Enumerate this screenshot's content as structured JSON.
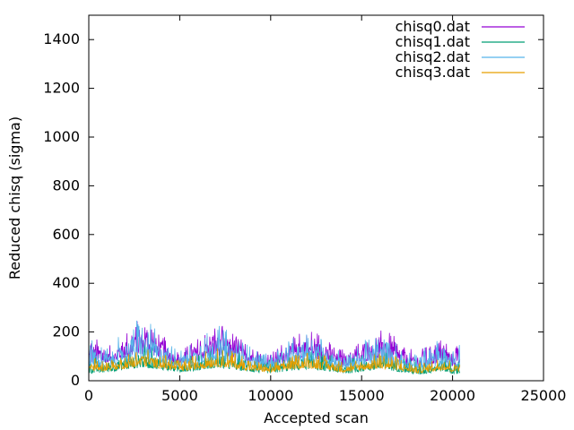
{
  "chart_data": {
    "type": "line",
    "title": "",
    "xlabel": "Accepted scan",
    "ylabel": "Reduced chisq (sigma)",
    "xlim": [
      0,
      25000
    ],
    "ylim": [
      0,
      1500
    ],
    "x_ticks": [
      0,
      5000,
      10000,
      15000,
      20000,
      25000
    ],
    "x_tick_labels": [
      "0",
      "5000",
      "10000",
      "15000",
      "20000",
      "25000"
    ],
    "y_ticks": [
      0,
      200,
      400,
      600,
      800,
      1000,
      1200,
      1400
    ],
    "y_tick_labels": [
      "0",
      "200",
      "400",
      "600",
      "800",
      "1000",
      "1200",
      "1400"
    ],
    "grid": false,
    "legend_position": "top-right",
    "series": [
      {
        "name": "chisq0.dat",
        "color": "#9400d3",
        "x": [
          0,
          500,
          1000,
          1500,
          2000,
          2500,
          3000,
          3500,
          4000,
          4500,
          5000,
          5500,
          6000,
          6500,
          7000,
          7500,
          8000,
          8500,
          9000,
          9500,
          10000,
          10500,
          11000,
          11500,
          12000,
          12500,
          13000,
          13500,
          14000,
          14500,
          15000,
          15500,
          16000,
          16500,
          17000,
          17500,
          18000,
          18500,
          19000,
          19500,
          20000,
          20400
        ],
        "upper": [
          200,
          170,
          140,
          160,
          200,
          240,
          270,
          250,
          200,
          140,
          120,
          150,
          180,
          210,
          240,
          230,
          200,
          170,
          140,
          120,
          110,
          150,
          180,
          200,
          220,
          210,
          180,
          150,
          130,
          150,
          170,
          190,
          210,
          200,
          170,
          140,
          120,
          140,
          160,
          180,
          150,
          170
        ],
        "lower": [
          70,
          70,
          75,
          80,
          95,
          105,
          110,
          105,
          95,
          80,
          70,
          75,
          85,
          95,
          105,
          100,
          95,
          85,
          75,
          70,
          65,
          70,
          80,
          90,
          95,
          90,
          80,
          70,
          60,
          65,
          75,
          85,
          90,
          85,
          75,
          65,
          55,
          60,
          70,
          80,
          60,
          70
        ]
      },
      {
        "name": "chisq1.dat",
        "color": "#009e73",
        "x": [
          0,
          500,
          1000,
          1500,
          2000,
          2500,
          3000,
          3500,
          4000,
          4500,
          5000,
          5500,
          6000,
          6500,
          7000,
          7500,
          8000,
          8500,
          9000,
          9500,
          10000,
          10500,
          11000,
          11500,
          12000,
          12500,
          13000,
          13500,
          14000,
          14500,
          15000,
          15500,
          16000,
          16500,
          17000,
          17500,
          18000,
          18500,
          19000,
          19500,
          20000,
          20400
        ],
        "upper": [
          110,
          100,
          95,
          105,
          120,
          135,
          150,
          140,
          125,
          105,
          95,
          105,
          120,
          135,
          145,
          140,
          130,
          115,
          100,
          90,
          85,
          95,
          110,
          120,
          130,
          125,
          115,
          100,
          90,
          95,
          105,
          115,
          125,
          120,
          110,
          95,
          85,
          90,
          100,
          110,
          95,
          105
        ],
        "lower": [
          30,
          30,
          35,
          40,
          45,
          50,
          55,
          50,
          45,
          40,
          35,
          38,
          42,
          48,
          52,
          50,
          45,
          40,
          35,
          32,
          30,
          35,
          40,
          45,
          48,
          45,
          40,
          35,
          28,
          32,
          38,
          42,
          45,
          42,
          38,
          32,
          25,
          28,
          35,
          40,
          25,
          30
        ]
      },
      {
        "name": "chisq2.dat",
        "color": "#56b4e9",
        "x": [
          0,
          500,
          1000,
          1500,
          2000,
          2500,
          3000,
          3500,
          4000,
          4500,
          5000,
          5500,
          6000,
          6500,
          7000,
          7500,
          8000,
          8500,
          9000,
          9500,
          10000,
          10500,
          11000,
          11500,
          12000,
          12500,
          13000,
          13500,
          14000,
          14500,
          15000,
          15500,
          16000,
          16500,
          17000,
          17500,
          18000,
          18500,
          19000,
          19500,
          20000,
          20400
        ],
        "upper": [
          180,
          160,
          140,
          170,
          210,
          260,
          250,
          230,
          190,
          150,
          130,
          150,
          180,
          200,
          230,
          220,
          190,
          160,
          140,
          120,
          110,
          140,
          170,
          190,
          200,
          190,
          170,
          150,
          130,
          140,
          160,
          180,
          190,
          180,
          160,
          140,
          120,
          140,
          160,
          190,
          140,
          150
        ],
        "lower": [
          55,
          55,
          60,
          65,
          75,
          85,
          90,
          85,
          75,
          65,
          55,
          60,
          70,
          80,
          85,
          80,
          75,
          65,
          60,
          55,
          50,
          55,
          65,
          75,
          80,
          75,
          65,
          55,
          48,
          52,
          60,
          68,
          75,
          70,
          62,
          52,
          45,
          50,
          58,
          65,
          48,
          55
        ]
      },
      {
        "name": "chisq3.dat",
        "color": "#e69f00",
        "x": [
          0,
          500,
          1000,
          1500,
          2000,
          2500,
          3000,
          3500,
          4000,
          4500,
          5000,
          5500,
          6000,
          6500,
          7000,
          7500,
          8000,
          8500,
          9000,
          9500,
          10000,
          10500,
          11000,
          11500,
          12000,
          12500,
          13000,
          13500,
          14000,
          14500,
          15000,
          15500,
          16000,
          16500,
          17000,
          17500,
          18000,
          18500,
          19000,
          19500,
          20000,
          20400
        ],
        "upper": [
          100,
          90,
          85,
          95,
          110,
          125,
          140,
          130,
          115,
          95,
          85,
          95,
          110,
          125,
          135,
          130,
          120,
          105,
          90,
          80,
          75,
          85,
          100,
          110,
          120,
          115,
          105,
          90,
          80,
          85,
          95,
          105,
          115,
          110,
          100,
          85,
          75,
          80,
          90,
          100,
          85,
          95
        ],
        "lower": [
          40,
          40,
          42,
          45,
          50,
          55,
          60,
          55,
          50,
          45,
          40,
          42,
          48,
          52,
          58,
          55,
          50,
          45,
          40,
          38,
          35,
          38,
          45,
          50,
          52,
          50,
          45,
          40,
          35,
          38,
          42,
          48,
          50,
          48,
          42,
          38,
          30,
          35,
          40,
          45,
          35,
          40
        ]
      }
    ]
  }
}
